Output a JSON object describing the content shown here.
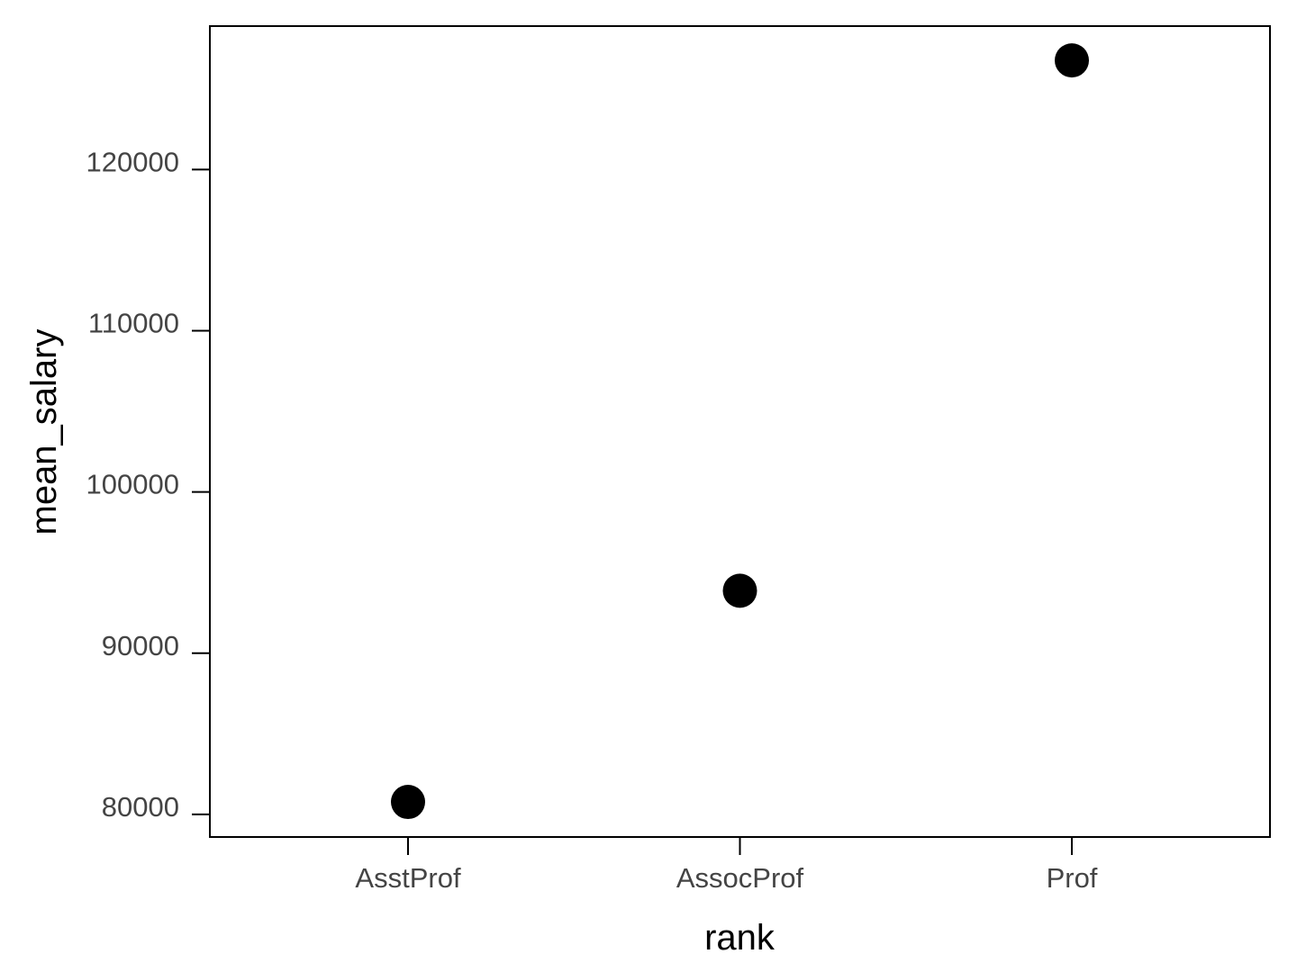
{
  "chart_data": {
    "type": "scatter",
    "title": "",
    "xlabel": "rank",
    "ylabel": "mean_salary",
    "categories": [
      "AsstProf",
      "AssocProf",
      "Prof"
    ],
    "values": [
      80776,
      93876,
      126772
    ],
    "yticks": [
      80000,
      90000,
      100000,
      110000,
      120000
    ],
    "ytick_labels": [
      "80000",
      "90000",
      "100000",
      "110000",
      "120000"
    ],
    "ylim": [
      78600,
      128900
    ],
    "grid": false,
    "legend": "none",
    "point_color": "#000000"
  }
}
